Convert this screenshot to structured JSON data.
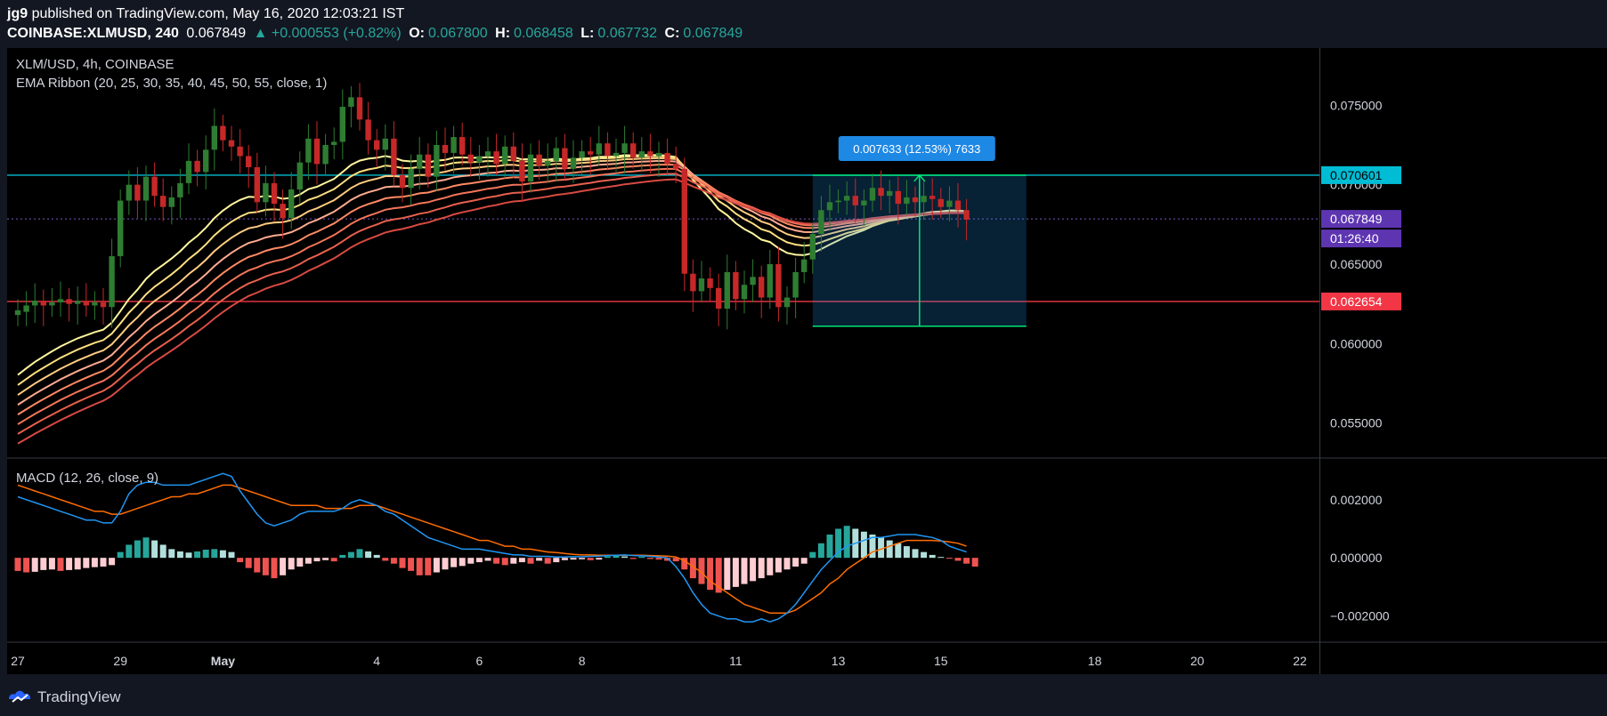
{
  "header": {
    "publisher": "jg9",
    "published_text": "published on TradingView.com, May 16, 2020 12:03:21 IST",
    "symbol": "COINBASE:XLMUSD, 240",
    "last": "0.067849",
    "change": "▲ +0.000553 (+0.82%)",
    "o_label": "O:",
    "o_value": "0.067800",
    "h_label": "H:",
    "h_value": "0.068458",
    "l_label": "L:",
    "l_value": "0.067732",
    "c_label": "C:",
    "c_value": "0.067849"
  },
  "footer": {
    "brand": "TradingView"
  },
  "colors": {
    "background": "#000000",
    "up": "#26a69a",
    "down": "#ef5350",
    "resistance": "#00bcd4",
    "support": "#f23645",
    "macd_line": "#2196f3",
    "signal_line": "#ff6d00",
    "measure": "#2196f3",
    "measure_border": "#00e676"
  },
  "chart_data": [
    {
      "type": "candlestick",
      "title": "XLM/USD, 4h, COINBASE",
      "subtitle": "EMA Ribbon (20, 25, 30, 35, 40, 45, 50, 55, close, 1)",
      "x_ticks": [
        "27",
        "29",
        "May",
        "4",
        "6",
        "8",
        "11",
        "13",
        "15",
        "18",
        "20",
        "22"
      ],
      "x_tick_index": [
        0,
        12,
        24,
        42,
        54,
        66,
        84,
        96,
        108,
        126,
        138,
        150
      ],
      "y_ticks": [
        "0.075000",
        "0.070000",
        "0.065000",
        "0.060000",
        "0.055000"
      ],
      "ylim": [
        0.0528,
        0.0786
      ],
      "resistance_label": "0.070601",
      "support_label": "0.062654",
      "last_price_label": "0.067849",
      "countdown_label": "01:26:40",
      "measure_label": "0.007633 (12.53%) 7633",
      "closes": [
        0.0621,
        0.0624,
        0.0627,
        0.0624,
        0.0626,
        0.0628,
        0.0625,
        0.0627,
        0.0624,
        0.0626,
        0.0623,
        0.0655,
        0.069,
        0.07,
        0.069,
        0.0705,
        0.0693,
        0.0686,
        0.0692,
        0.0701,
        0.0715,
        0.0708,
        0.0722,
        0.0737,
        0.0728,
        0.0724,
        0.0718,
        0.0711,
        0.0689,
        0.0701,
        0.0688,
        0.0679,
        0.0697,
        0.0714,
        0.0729,
        0.0713,
        0.0725,
        0.0727,
        0.0749,
        0.0755,
        0.0741,
        0.0728,
        0.0722,
        0.0729,
        0.0706,
        0.0698,
        0.071,
        0.0719,
        0.0705,
        0.0725,
        0.072,
        0.073,
        0.0719,
        0.0714,
        0.0718,
        0.0721,
        0.0713,
        0.0724,
        0.0715,
        0.0702,
        0.0719,
        0.0712,
        0.0715,
        0.0723,
        0.071,
        0.0717,
        0.0721,
        0.0719,
        0.0726,
        0.0718,
        0.072,
        0.0726,
        0.0717,
        0.0721,
        0.0718,
        0.072,
        0.0713,
        0.071,
        0.0644,
        0.0633,
        0.0641,
        0.0635,
        0.0622,
        0.0645,
        0.0628,
        0.0637,
        0.0642,
        0.0629,
        0.065,
        0.0623,
        0.0629,
        0.0645,
        0.0653,
        0.0669,
        0.0684,
        0.0689,
        0.069,
        0.0693,
        0.0687,
        0.069,
        0.0698,
        0.0693,
        0.0696,
        0.0688,
        0.0692,
        0.0689,
        0.0693,
        0.0691,
        0.0686,
        0.069,
        0.0684,
        0.0678
      ],
      "open": [
        0.0618,
        0.062,
        0.0624,
        0.0627,
        0.0624,
        0.0626,
        0.0628,
        0.0625,
        0.0627,
        0.0624,
        0.0626,
        0.0623,
        0.0655,
        0.069,
        0.07,
        0.069,
        0.0705,
        0.0693,
        0.0686,
        0.0692,
        0.0701,
        0.0715,
        0.0708,
        0.0722,
        0.0737,
        0.0728,
        0.0724,
        0.0718,
        0.0711,
        0.0689,
        0.0701,
        0.0688,
        0.0679,
        0.0697,
        0.0714,
        0.0729,
        0.0713,
        0.0725,
        0.0727,
        0.0749,
        0.0755,
        0.0741,
        0.0728,
        0.0722,
        0.0729,
        0.0706,
        0.0698,
        0.071,
        0.0719,
        0.0705,
        0.0725,
        0.072,
        0.073,
        0.0719,
        0.0714,
        0.0718,
        0.0721,
        0.0713,
        0.0724,
        0.0715,
        0.0702,
        0.0719,
        0.0712,
        0.0715,
        0.0723,
        0.071,
        0.0717,
        0.0721,
        0.0719,
        0.0726,
        0.0718,
        0.072,
        0.0726,
        0.0717,
        0.0721,
        0.0718,
        0.072,
        0.0713,
        0.071,
        0.0644,
        0.0633,
        0.0641,
        0.0635,
        0.0622,
        0.0645,
        0.0628,
        0.0637,
        0.0642,
        0.0629,
        0.065,
        0.0623,
        0.0629,
        0.0645,
        0.0653,
        0.0669,
        0.0684,
        0.0689,
        0.069,
        0.0693,
        0.0687,
        0.069,
        0.0698,
        0.0693,
        0.0696,
        0.0688,
        0.0692,
        0.0689,
        0.0693,
        0.0691,
        0.0686,
        0.069,
        0.0684
      ],
      "range_high": 0.0706,
      "range_low": 0.0611
    },
    {
      "type": "bar",
      "title": "MACD (12, 26, close, 9)",
      "y_ticks": [
        "0.002000",
        "0.000000",
        "−0.002000"
      ],
      "ylim": [
        -0.0029,
        0.0034
      ],
      "histogram": [
        -0.00045,
        -0.0005,
        -0.00048,
        -0.00042,
        -0.0004,
        -0.00045,
        -0.00042,
        -0.0004,
        -0.00035,
        -0.00032,
        -0.0003,
        -0.00025,
        0.0002,
        0.00045,
        0.0006,
        0.0007,
        0.0006,
        0.00045,
        0.0003,
        0.00022,
        0.00018,
        0.00022,
        0.00028,
        0.0003,
        0.00026,
        0.0002,
        -0.00015,
        -0.00035,
        -0.0005,
        -0.0006,
        -0.0007,
        -0.0006,
        -0.0004,
        -0.0003,
        -0.0002,
        -0.00012,
        -8e-05,
        -0.00012,
        0.0001,
        0.0002,
        0.0003,
        0.00022,
        0.0001,
        -0.0001,
        -0.0002,
        -0.00035,
        -0.00045,
        -0.0006,
        -0.0006,
        -0.0005,
        -0.0004,
        -0.00032,
        -0.00028,
        -0.0002,
        -0.00015,
        -0.0001,
        -0.0002,
        -0.00025,
        -0.0002,
        -0.00015,
        -0.0002,
        -0.0001,
        -0.0002,
        -0.00015,
        -8e-05,
        -6e-05,
        -5e-05,
        -8e-05,
        -6e-05,
        5e-05,
        8e-05,
        5e-05,
        -4e-05,
        4e-05,
        -4e-05,
        -6e-05,
        -0.0001,
        -0.00012,
        -0.0004,
        -0.0007,
        -0.0009,
        -0.0011,
        -0.0012,
        -0.0011,
        -0.001,
        -0.0009,
        -0.0008,
        -0.0007,
        -0.0006,
        -0.0005,
        -0.0004,
        -0.0003,
        -0.0002,
        0.0002,
        0.0005,
        0.0008,
        0.001,
        0.0011,
        0.001,
        0.0009,
        0.0008,
        0.0007,
        0.0006,
        0.0005,
        0.0004,
        0.0003,
        0.0002,
        0.0001,
        3e-05,
        -3e-05,
        -0.0001,
        -0.0002,
        -0.0003
      ],
      "macd": [
        0.0021,
        0.002,
        0.0019,
        0.0018,
        0.0017,
        0.0016,
        0.0015,
        0.0014,
        0.0013,
        0.0013,
        0.0012,
        0.0012,
        0.0016,
        0.0022,
        0.0025,
        0.0026,
        0.0026,
        0.0025,
        0.0025,
        0.0025,
        0.0025,
        0.0026,
        0.0027,
        0.0028,
        0.0029,
        0.0028,
        0.0023,
        0.0019,
        0.0015,
        0.0012,
        0.0011,
        0.0012,
        0.0013,
        0.0015,
        0.0016,
        0.0016,
        0.0016,
        0.0016,
        0.0017,
        0.0019,
        0.002,
        0.0019,
        0.0018,
        0.0016,
        0.0015,
        0.0013,
        0.0011,
        0.0009,
        0.0007,
        0.0006,
        0.0005,
        0.0004,
        0.0003,
        0.0003,
        0.0003,
        0.00025,
        0.0002,
        0.00015,
        0.0001,
        0.0001,
        5e-05,
        5e-05,
        5e-05,
        3e-05,
        3e-05,
        4e-05,
        4e-05,
        5e-05,
        6e-05,
        8e-05,
        9e-05,
        0.0001,
        8e-05,
        7e-05,
        5e-05,
        3e-05,
        0.0,
        -0.0003,
        -0.0007,
        -0.0012,
        -0.0016,
        -0.0019,
        -0.002,
        -0.0021,
        -0.0021,
        -0.0022,
        -0.0022,
        -0.0021,
        -0.0022,
        -0.0021,
        -0.0019,
        -0.0016,
        -0.0012,
        -0.0008,
        -0.0004,
        -0.0001,
        0.0002,
        0.0004,
        0.0005,
        0.0006,
        0.0007,
        0.0007,
        0.00075,
        0.0008,
        0.0008,
        0.0008,
        0.00075,
        0.0007,
        0.0006,
        0.0004,
        0.0003,
        0.0002
      ],
      "signal": [
        0.0025,
        0.0024,
        0.0023,
        0.0022,
        0.0021,
        0.002,
        0.0019,
        0.0018,
        0.0017,
        0.0016,
        0.0016,
        0.0015,
        0.0015,
        0.0016,
        0.0017,
        0.0018,
        0.0019,
        0.002,
        0.0021,
        0.0021,
        0.0022,
        0.0022,
        0.0023,
        0.0024,
        0.0025,
        0.0025,
        0.0024,
        0.0023,
        0.0022,
        0.0021,
        0.002,
        0.0019,
        0.0018,
        0.0018,
        0.0018,
        0.0018,
        0.0017,
        0.0017,
        0.0017,
        0.0017,
        0.0018,
        0.0018,
        0.0018,
        0.0017,
        0.0016,
        0.0015,
        0.0014,
        0.0013,
        0.0012,
        0.0011,
        0.001,
        0.0009,
        0.0008,
        0.0007,
        0.0006,
        0.0006,
        0.0005,
        0.0004,
        0.0004,
        0.0003,
        0.0003,
        0.00025,
        0.0002,
        0.00018,
        0.00015,
        0.00012,
        0.0001,
        0.0001,
        9e-05,
        9e-05,
        9e-05,
        9e-05,
        9e-05,
        9e-05,
        8e-05,
        7e-05,
        6e-05,
        3e-05,
        -0.0001,
        -0.0003,
        -0.0005,
        -0.0008,
        -0.001,
        -0.0012,
        -0.0014,
        -0.0016,
        -0.0017,
        -0.0018,
        -0.0019,
        -0.0019,
        -0.0019,
        -0.0018,
        -0.0016,
        -0.0014,
        -0.0012,
        -0.0009,
        -0.0007,
        -0.0004,
        -0.0002,
        0.0,
        0.0002,
        0.0003,
        0.0004,
        0.0005,
        0.0006,
        0.0006,
        0.0006,
        0.0006,
        0.00058,
        0.00055,
        0.0005,
        0.0004
      ]
    }
  ]
}
